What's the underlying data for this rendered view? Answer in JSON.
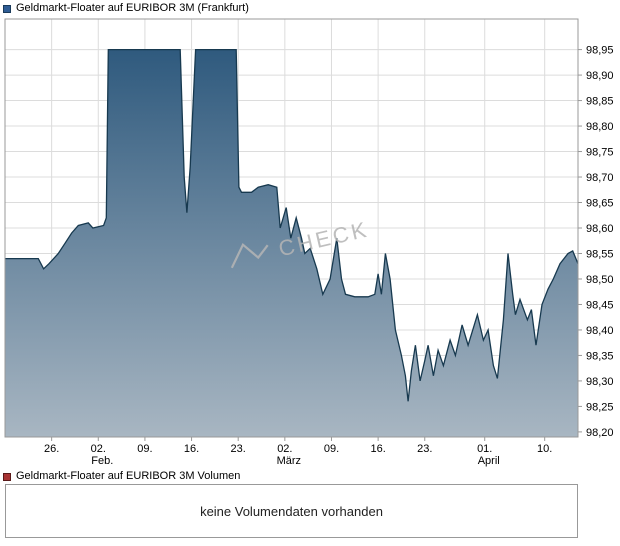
{
  "header": {
    "legend_label": "Geldmarkt-Floater auf EURIBOR 3M (Frankfurt)",
    "legend_color": "#2e5c94",
    "legend_border": "#1a3a5a"
  },
  "volume": {
    "legend_label": "Geldmarkt-Floater auf EURIBOR 3M Volumen",
    "legend_color": "#a83434",
    "legend_border": "#5a1a1a",
    "empty_text": "keine Volumendaten vorhanden"
  },
  "watermark": "CHECK",
  "chart_data": {
    "type": "area",
    "title": "Geldmarkt-Floater auf EURIBOR 3M (Frankfurt)",
    "x_unit": "days from chart left edge (approx. 19. Januar)",
    "x_domain": [
      0,
      86
    ],
    "y_domain_plot": [
      98.19,
      99.01
    ],
    "ylim": [
      98.2,
      98.95
    ],
    "grid": true,
    "legend_position": "top-left",
    "y_ticks": [
      {
        "v": 98.2,
        "label": "98,20"
      },
      {
        "v": 98.25,
        "label": "98,25"
      },
      {
        "v": 98.3,
        "label": "98,30"
      },
      {
        "v": 98.35,
        "label": "98,35"
      },
      {
        "v": 98.4,
        "label": "98,40"
      },
      {
        "v": 98.45,
        "label": "98,45"
      },
      {
        "v": 98.5,
        "label": "98,50"
      },
      {
        "v": 98.55,
        "label": "98,55"
      },
      {
        "v": 98.6,
        "label": "98,60"
      },
      {
        "v": 98.65,
        "label": "98,65"
      },
      {
        "v": 98.7,
        "label": "98,70"
      },
      {
        "v": 98.75,
        "label": "98,75"
      },
      {
        "v": 98.8,
        "label": "98,80"
      },
      {
        "v": 98.85,
        "label": "98,85"
      },
      {
        "v": 98.9,
        "label": "98,90"
      },
      {
        "v": 98.95,
        "label": "98,95"
      }
    ],
    "x_ticks": [
      {
        "d": 7,
        "label": "26."
      },
      {
        "d": 14,
        "label": "02.",
        "month": "Feb."
      },
      {
        "d": 21,
        "label": "09."
      },
      {
        "d": 28,
        "label": "16."
      },
      {
        "d": 35,
        "label": "23."
      },
      {
        "d": 42,
        "label": "02.",
        "month": "März"
      },
      {
        "d": 49,
        "label": "09."
      },
      {
        "d": 56,
        "label": "16."
      },
      {
        "d": 63,
        "label": "23."
      },
      {
        "d": 72,
        "label": "01.",
        "month": "April"
      },
      {
        "d": 81,
        "label": "10."
      }
    ],
    "series": [
      {
        "name": "Geldmarkt-Floater auf EURIBOR 3M (Frankfurt)",
        "points": [
          [
            0,
            98.54
          ],
          [
            5,
            98.54
          ],
          [
            5.8,
            98.52
          ],
          [
            6.6,
            98.53
          ],
          [
            8,
            98.55
          ],
          [
            9,
            98.57
          ],
          [
            10,
            98.59
          ],
          [
            11,
            98.605
          ],
          [
            12.5,
            98.61
          ],
          [
            13.2,
            98.6
          ],
          [
            14.8,
            98.605
          ],
          [
            15.2,
            98.62
          ],
          [
            15.5,
            98.95
          ],
          [
            26.3,
            98.95
          ],
          [
            26.9,
            98.7
          ],
          [
            27.3,
            98.63
          ],
          [
            27.8,
            98.72
          ],
          [
            28.6,
            98.95
          ],
          [
            34.7,
            98.95
          ],
          [
            35.1,
            98.68
          ],
          [
            35.5,
            98.67
          ],
          [
            37,
            98.67
          ],
          [
            38,
            98.68
          ],
          [
            39.5,
            98.685
          ],
          [
            40.8,
            98.68
          ],
          [
            41.3,
            98.6
          ],
          [
            42.2,
            98.64
          ],
          [
            42.9,
            98.58
          ],
          [
            43.7,
            98.62
          ],
          [
            44.5,
            98.58
          ],
          [
            45,
            98.55
          ],
          [
            45.8,
            98.56
          ],
          [
            46.8,
            98.52
          ],
          [
            47.7,
            98.47
          ],
          [
            48.8,
            98.5
          ],
          [
            49.8,
            98.58
          ],
          [
            50.5,
            98.5
          ],
          [
            51.1,
            98.47
          ],
          [
            52.5,
            98.465
          ],
          [
            54.5,
            98.465
          ],
          [
            55.5,
            98.47
          ],
          [
            56,
            98.51
          ],
          [
            56.5,
            98.47
          ],
          [
            57.1,
            98.55
          ],
          [
            57.8,
            98.5
          ],
          [
            58.6,
            98.4
          ],
          [
            59.5,
            98.35
          ],
          [
            60.1,
            98.31
          ],
          [
            60.5,
            98.26
          ],
          [
            61,
            98.32
          ],
          [
            61.6,
            98.37
          ],
          [
            62.3,
            98.3
          ],
          [
            63,
            98.34
          ],
          [
            63.5,
            98.37
          ],
          [
            64.3,
            98.31
          ],
          [
            65,
            98.36
          ],
          [
            65.8,
            98.33
          ],
          [
            66.8,
            98.38
          ],
          [
            67.6,
            98.35
          ],
          [
            68.6,
            98.41
          ],
          [
            69.5,
            98.37
          ],
          [
            70.9,
            98.43
          ],
          [
            71.8,
            98.38
          ],
          [
            72.5,
            98.4
          ],
          [
            73.3,
            98.33
          ],
          [
            73.9,
            98.305
          ],
          [
            74.8,
            98.42
          ],
          [
            75.5,
            98.55
          ],
          [
            76.2,
            98.47
          ],
          [
            76.6,
            98.43
          ],
          [
            77.3,
            98.46
          ],
          [
            78.4,
            98.42
          ],
          [
            79,
            98.44
          ],
          [
            79.7,
            98.37
          ],
          [
            80.6,
            98.45
          ],
          [
            81.5,
            98.48
          ],
          [
            82.3,
            98.5
          ],
          [
            83.3,
            98.53
          ],
          [
            84.5,
            98.55
          ],
          [
            85.2,
            98.555
          ],
          [
            86,
            98.53
          ]
        ]
      }
    ],
    "colors": {
      "line": "#17394f",
      "fill_top": "#2f5a7e",
      "fill_bottom": "#a8b6c2",
      "grid": "#dcdcdc",
      "border": "#999999",
      "axis_text": "#000000",
      "watermark": "#b5b5b5"
    }
  }
}
